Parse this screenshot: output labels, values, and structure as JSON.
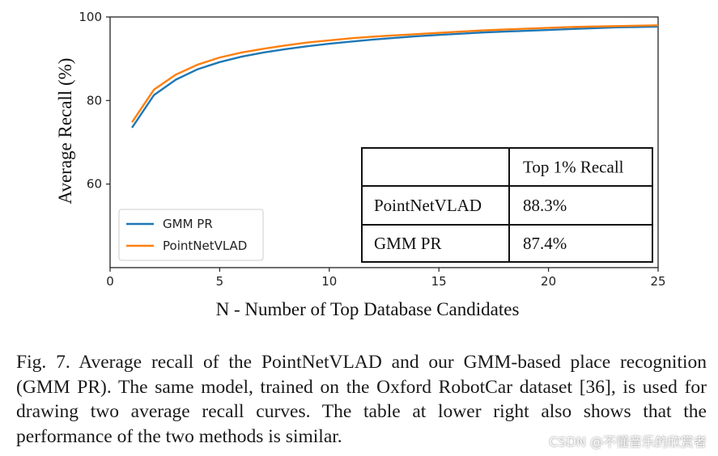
{
  "chart_data": {
    "type": "line",
    "xlabel": "N - Number of Top Database Candidates",
    "ylabel": "Average Recall (%)",
    "xlim": [
      0,
      25
    ],
    "ylim": [
      40,
      100
    ],
    "xticks": [
      0,
      5,
      10,
      15,
      20,
      25
    ],
    "yticks": [
      60,
      80,
      100
    ],
    "legend_position": "lower-left",
    "x": [
      1,
      2,
      3,
      4,
      5,
      6,
      7,
      8,
      9,
      10,
      11,
      12,
      13,
      14,
      15,
      16,
      17,
      18,
      19,
      20,
      21,
      22,
      23,
      24,
      25
    ],
    "series": [
      {
        "name": "GMM PR",
        "color": "#1f77b4",
        "values": [
          73.5,
          81.3,
          85.0,
          87.5,
          89.2,
          90.5,
          91.5,
          92.3,
          93.0,
          93.6,
          94.1,
          94.6,
          95.0,
          95.4,
          95.7,
          96.0,
          96.3,
          96.5,
          96.7,
          96.9,
          97.1,
          97.3,
          97.5,
          97.6,
          97.7
        ]
      },
      {
        "name": "PointNetVLAD",
        "color": "#ff7f0e",
        "values": [
          74.8,
          82.6,
          86.2,
          88.6,
          90.3,
          91.5,
          92.4,
          93.2,
          93.9,
          94.4,
          94.9,
          95.3,
          95.6,
          95.9,
          96.2,
          96.5,
          96.8,
          97.0,
          97.2,
          97.4,
          97.6,
          97.7,
          97.8,
          97.9,
          98.0
        ]
      }
    ],
    "table": {
      "header": [
        "",
        "Top 1% Recall"
      ],
      "rows": [
        [
          "PointNetVLAD",
          "88.3%"
        ],
        [
          "GMM PR",
          "87.4%"
        ]
      ]
    }
  },
  "caption": "Fig. 7.   Average recall of the PointNetVLAD and our GMM-based place recognition (GMM PR). The same model, trained on the Oxford RobotCar dataset [36], is used for drawing two average recall curves. The table at lower right also shows that the performance of the two methods is similar.",
  "watermark": "CSDN @不懂音乐的欣赏者"
}
